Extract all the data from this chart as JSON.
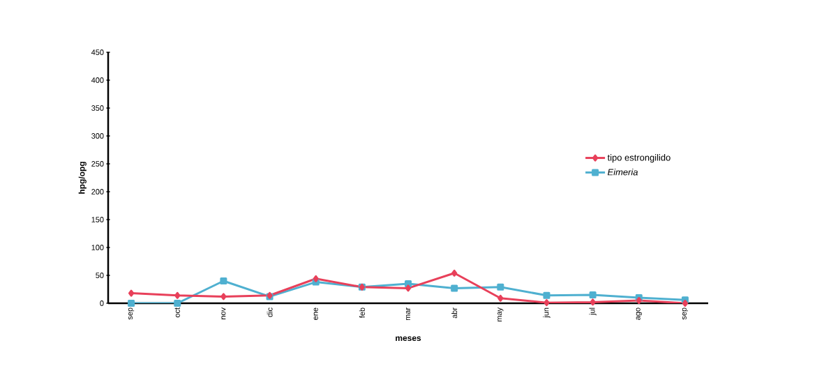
{
  "chart_data": {
    "type": "line",
    "xlabel": "meses",
    "ylabel": "hpg/opg",
    "categories": [
      "sep",
      "oct",
      "nov",
      "dic",
      "ene",
      "feb",
      "mar",
      "abr",
      "may",
      "jun",
      "jul",
      "ago",
      "sep"
    ],
    "series": [
      {
        "name": "tipo estrongilido",
        "color": "#e8405a",
        "marker": "diamond",
        "values": [
          18,
          14,
          12,
          14,
          44,
          29,
          27,
          54,
          9,
          1,
          2,
          5,
          0
        ]
      },
      {
        "name": "*Eimeria*",
        "color": "#4fb0d0",
        "marker": "square",
        "values": [
          0,
          0,
          40,
          12,
          38,
          29,
          35,
          27,
          29,
          14,
          15,
          10,
          6
        ]
      }
    ],
    "ylim": [
      0,
      450
    ],
    "yticks": [
      0,
      50,
      100,
      150,
      200,
      250,
      300,
      350,
      400,
      450
    ],
    "grid": false,
    "legend": "right",
    "line_style": "solid"
  }
}
